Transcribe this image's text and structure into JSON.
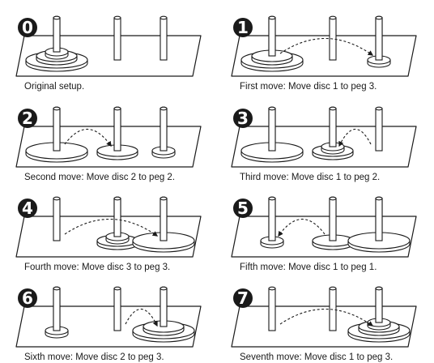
{
  "figure": {
    "steps": [
      {
        "number": "0",
        "caption": "Original setup.",
        "pegs": [
          [
            3,
            2,
            1
          ],
          [],
          []
        ],
        "arrow": null
      },
      {
        "number": "1",
        "caption": "First move: Move disc 1 to peg 3.",
        "pegs": [
          [
            3,
            2
          ],
          [],
          [
            1
          ]
        ],
        "arrow": {
          "disc": 1,
          "from_peg": 1,
          "to_peg": 3
        }
      },
      {
        "number": "2",
        "caption": "Second move: Move disc 2 to peg 2.",
        "pegs": [
          [
            3
          ],
          [
            2
          ],
          [
            1
          ]
        ],
        "arrow": {
          "disc": 2,
          "from_peg": 1,
          "to_peg": 2
        }
      },
      {
        "number": "3",
        "caption": "Third move: Move disc 1 to peg 2.",
        "pegs": [
          [
            3
          ],
          [
            2,
            1
          ],
          []
        ],
        "arrow": {
          "disc": 1,
          "from_peg": 3,
          "to_peg": 2
        }
      },
      {
        "number": "4",
        "caption": "Fourth move: Move disc 3 to peg 3.",
        "pegs": [
          [],
          [
            2,
            1
          ],
          [
            3
          ]
        ],
        "arrow": {
          "disc": 3,
          "from_peg": 1,
          "to_peg": 3
        }
      },
      {
        "number": "5",
        "caption": "Fifth move: Move disc 1 to peg 1.",
        "pegs": [
          [
            1
          ],
          [
            2
          ],
          [
            3
          ]
        ],
        "arrow": {
          "disc": 1,
          "from_peg": 2,
          "to_peg": 1
        }
      },
      {
        "number": "6",
        "caption": "Sixth move: Move disc 2 to peg 3.",
        "pegs": [
          [
            1
          ],
          [],
          [
            3,
            2
          ]
        ],
        "arrow": {
          "disc": 2,
          "from_peg": 2,
          "to_peg": 3
        }
      },
      {
        "number": "7",
        "caption": "Seventh move: Move disc 1 to peg 3.",
        "pegs": [
          [],
          [],
          [
            3,
            2,
            1
          ]
        ],
        "arrow": {
          "disc": 1,
          "from_peg": 1,
          "to_peg": 3
        }
      }
    ]
  }
}
